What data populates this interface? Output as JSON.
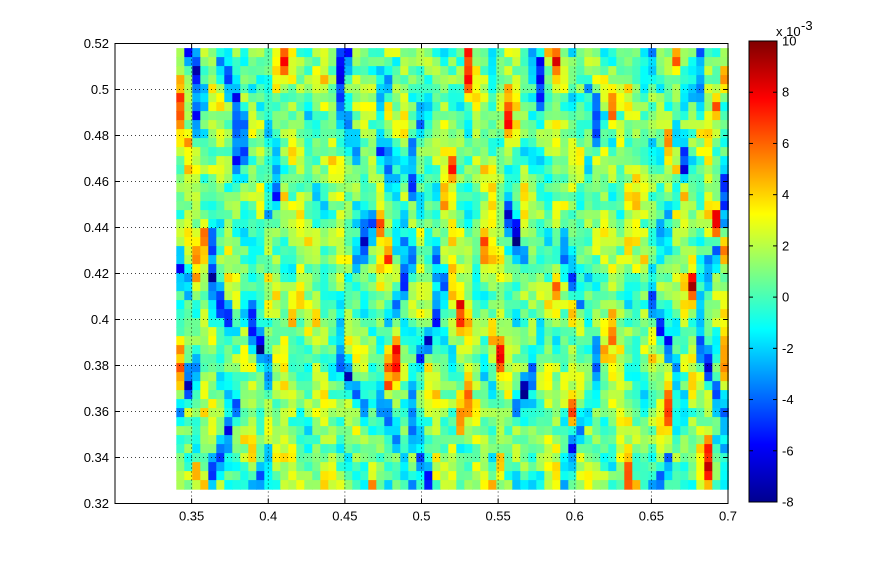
{
  "chart_data": {
    "type": "heatmap",
    "title": "",
    "xlabel": "",
    "ylabel": "",
    "xlim": [
      0.3,
      0.7
    ],
    "ylim": [
      0.32,
      0.52
    ],
    "data_extent": {
      "x": [
        0.34,
        0.695
      ],
      "y": [
        0.327,
        0.518
      ]
    },
    "x_ticks": [
      "0.35",
      "0.4",
      "0.45",
      "0.5",
      "0.55",
      "0.6",
      "0.65",
      "0.7"
    ],
    "y_ticks": [
      "0.32",
      "0.34",
      "0.36",
      "0.38",
      "0.4",
      "0.42",
      "0.44",
      "0.46",
      "0.48",
      "0.5",
      "0.52"
    ],
    "grid": "dotted major grid",
    "colormap": "jet",
    "colorbar": {
      "clim": [
        -8,
        10
      ],
      "ticks": [
        "-8",
        "-6",
        "-4",
        "-2",
        "0",
        "2",
        "4",
        "6",
        "8",
        "10"
      ],
      "exponent_label": "x 10",
      "exponent_power": "-3",
      "placement": "right"
    },
    "field_description": "noisy scalar field with vertical streak structure; dominant values -2 to 4 (x10^-3), negative streaks near x = 0.345, 0.37, 0.455, 0.5, 0.6, 0.655; positive hot spots near x = 0.475, 0.52, 0.625"
  }
}
